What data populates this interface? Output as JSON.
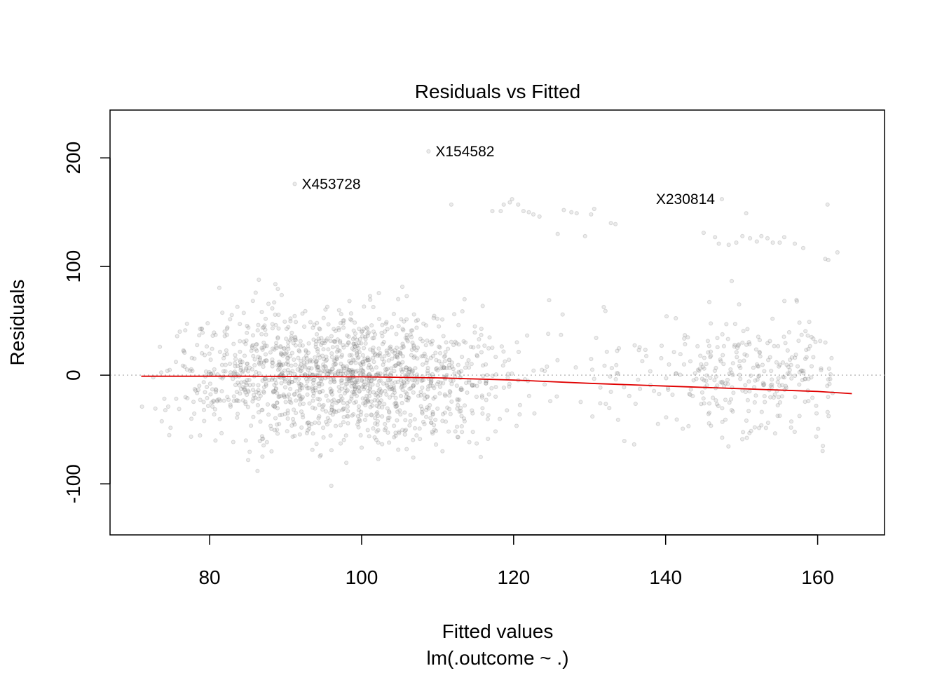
{
  "chart_data": {
    "type": "scatter",
    "title": "Residuals vs Fitted",
    "xlabel": "Fitted values",
    "subtitle": "lm(.outcome ~ .)",
    "ylabel": "Residuals",
    "xlim": [
      66.9,
      168.8
    ],
    "ylim": [
      -147,
      244
    ],
    "x_ticks": [
      80,
      100,
      120,
      140,
      160
    ],
    "y_ticks": [
      -100,
      0,
      100,
      200
    ],
    "reference_line": {
      "y": 0,
      "style": "dotted",
      "color": "#bdbdbd"
    },
    "point_color": "#000000",
    "point_opacity": 0.12,
    "smooth_line": {
      "color": "#e00000",
      "points": [
        {
          "x": 71,
          "y": -1
        },
        {
          "x": 85,
          "y": -1
        },
        {
          "x": 100,
          "y": -1.5
        },
        {
          "x": 110,
          "y": -2.5
        },
        {
          "x": 120,
          "y": -4.5
        },
        {
          "x": 130,
          "y": -7.5
        },
        {
          "x": 140,
          "y": -10
        },
        {
          "x": 150,
          "y": -12.5
        },
        {
          "x": 160,
          "y": -15
        },
        {
          "x": 164.5,
          "y": -17
        }
      ]
    },
    "labeled_points": [
      {
        "label": "X154582",
        "x": 108.8,
        "y": 206
      },
      {
        "label": "X453728",
        "x": 91.2,
        "y": 176
      },
      {
        "label": "X230814",
        "x": 147.4,
        "y": 162
      }
    ],
    "outlier_points": [
      {
        "x": 111.8,
        "y": 157
      },
      {
        "x": 117.2,
        "y": 151
      },
      {
        "x": 118.3,
        "y": 151
      },
      {
        "x": 118.7,
        "y": 157
      },
      {
        "x": 119.5,
        "y": 159
      },
      {
        "x": 119.8,
        "y": 162
      },
      {
        "x": 120.6,
        "y": 157
      },
      {
        "x": 121.3,
        "y": 151
      },
      {
        "x": 122.0,
        "y": 150
      },
      {
        "x": 122.6,
        "y": 148
      },
      {
        "x": 123.4,
        "y": 146
      },
      {
        "x": 125.8,
        "y": 130
      },
      {
        "x": 126.6,
        "y": 152
      },
      {
        "x": 127.6,
        "y": 150
      },
      {
        "x": 128.3,
        "y": 149
      },
      {
        "x": 129.4,
        "y": 128
      },
      {
        "x": 130.2,
        "y": 148
      },
      {
        "x": 130.6,
        "y": 153
      },
      {
        "x": 132.8,
        "y": 140
      },
      {
        "x": 133.4,
        "y": 139
      },
      {
        "x": 145.0,
        "y": 131
      },
      {
        "x": 146.5,
        "y": 127
      },
      {
        "x": 147.0,
        "y": 121
      },
      {
        "x": 148.3,
        "y": 120
      },
      {
        "x": 149.3,
        "y": 122
      },
      {
        "x": 150.1,
        "y": 128
      },
      {
        "x": 150.6,
        "y": 149
      },
      {
        "x": 151.1,
        "y": 126
      },
      {
        "x": 152.0,
        "y": 123
      },
      {
        "x": 152.6,
        "y": 128
      },
      {
        "x": 153.4,
        "y": 126
      },
      {
        "x": 154.1,
        "y": 122
      },
      {
        "x": 155.0,
        "y": 122
      },
      {
        "x": 155.6,
        "y": 127
      },
      {
        "x": 157.0,
        "y": 121
      },
      {
        "x": 158.1,
        "y": 117
      },
      {
        "x": 161.0,
        "y": 107
      },
      {
        "x": 161.4,
        "y": 106
      },
      {
        "x": 162.6,
        "y": 113
      },
      {
        "x": 161.3,
        "y": 157
      }
    ],
    "cluster_model": {
      "n_points": 1850,
      "x_range": [
        71,
        165
      ],
      "residual_sd": 28,
      "note": "dense cloud of residuals centered on 0, densest near fitted values 90–105, sparse gap around 133–143"
    }
  }
}
